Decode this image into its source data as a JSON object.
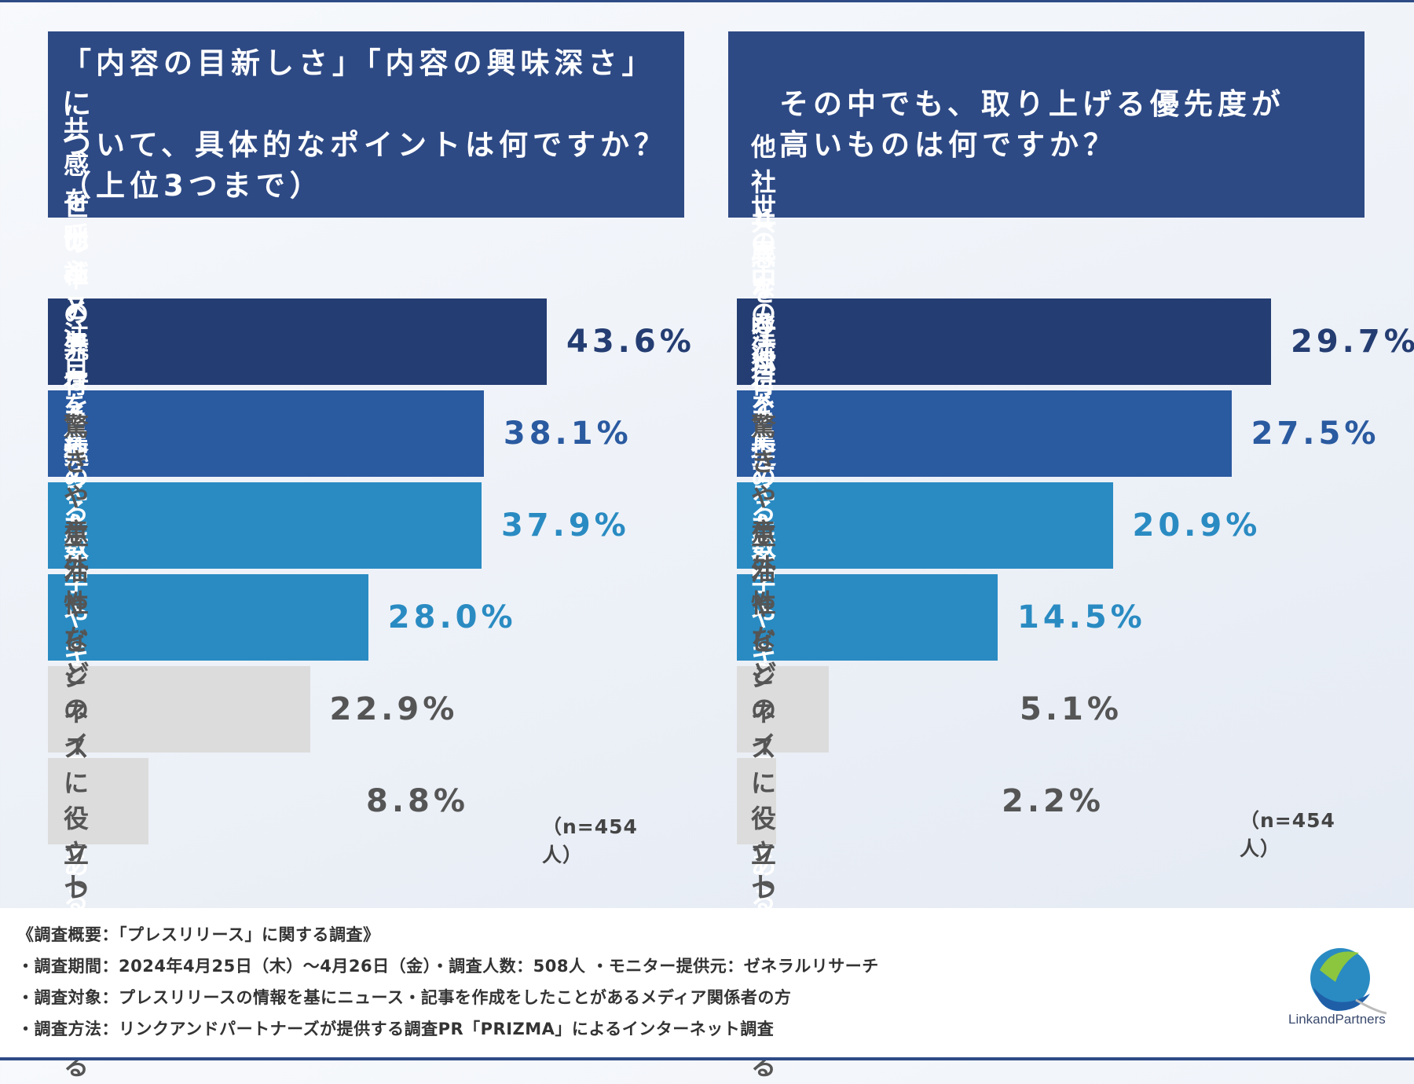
{
  "questions": {
    "left": "「内容の目新しさ」「内容の興味深さ」に\nついて、具体的なポイントは何ですか？\n（上位3つまで）",
    "right": "その中でも、取り上げる優先度が\n高いものは何ですか？"
  },
  "chart_data": [
    {
      "type": "bar",
      "orientation": "horizontal",
      "title": "「内容の目新しさ」「内容の興味深さ」について、具体的なポイントは何ですか？（上位3つまで）",
      "categories": [
        "共感を呼ぶストーリーがある",
        "他社と異なる独自性がある",
        "世の中の流行を捉えたテ\nーマを扱っている",
        "注目を集める数字やキ\nーワードがある",
        "驚きや意外性などの\nインパクトがある",
        "生活やビジネスに役立\nつ情報がある"
      ],
      "values": [
        43.6,
        38.1,
        37.9,
        28.0,
        22.9,
        8.8
      ],
      "value_labels": [
        "43.6%",
        "38.1%",
        "37.9%",
        "28.0%",
        "22.9%",
        "8.8%"
      ],
      "colors": [
        "#243d72",
        "#2a5aa0",
        "#2a8bc2",
        "#2a8bc2",
        "#dcdcdc",
        "#dcdcdc"
      ],
      "value_colors": [
        "#243d72",
        "#2a5aa0",
        "#2a8bc2",
        "#2a8bc2",
        "#555555",
        "#555555"
      ],
      "note": "（n=454人）"
    },
    {
      "type": "bar",
      "orientation": "horizontal",
      "title": "その中でも、取り上げる優先度が高いものは何ですか？",
      "categories": [
        "他社と異なる独自性がある",
        "共感を呼ぶストーリーがある",
        "世の中の流行を捉えたテ\nーマを扱っている",
        "注目を集める数字や\nキーワードがある",
        "驚きや意外性などの\nインパクトがある",
        "生活やビジネスに\n役立つ情報がある"
      ],
      "values": [
        29.7,
        27.5,
        20.9,
        14.5,
        5.1,
        2.2
      ],
      "value_labels": [
        "29.7%",
        "27.5%",
        "20.9%",
        "14.5%",
        "5.1%",
        "2.2%"
      ],
      "colors": [
        "#243d72",
        "#2a5aa0",
        "#2a8bc2",
        "#2a8bc2",
        "#dcdcdc",
        "#dcdcdc"
      ],
      "value_colors": [
        "#243d72",
        "#2a5aa0",
        "#2a8bc2",
        "#2a8bc2",
        "#555555",
        "#555555"
      ],
      "note": "（n=454人）"
    }
  ],
  "footer": {
    "lines": [
      "《調査概要：「プレスリリース」に関する調査》",
      "・調査期間：2024年4月25日（木）〜4月26日（金）・調査人数：508人 ・モニター提供元：ゼネラルリサーチ",
      "・調査対象：プレスリリースの情報を基にニュース・記事を作成をしたことがあるメディア関係者の方",
      "・調査方法：リンクアンドパートナーズが提供する調査PR「PRIZMA」によるインターネット調査"
    ],
    "logo_text": "LinkandPartners"
  }
}
